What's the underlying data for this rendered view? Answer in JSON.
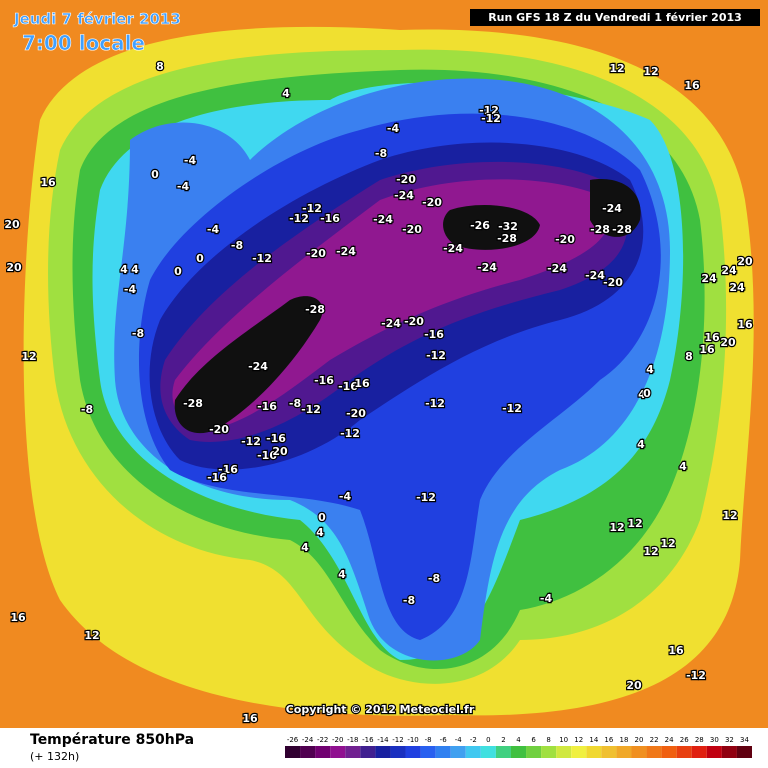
{
  "header": {
    "date": "Jeudi 7 février 2013",
    "time": "7:00 locale",
    "run": "Run GFS 18 Z du Vendredi 1 février 2013"
  },
  "copyright": "Copyright © 2012 Meteociel.fr",
  "footer": {
    "title": "Température 850hPa",
    "lead": "(+ 132h)"
  },
  "legend": {
    "ticks": [
      -26,
      -24,
      -22,
      -20,
      -18,
      -16,
      -14,
      -12,
      -10,
      -8,
      -6,
      -4,
      -2,
      0,
      2,
      4,
      6,
      8,
      10,
      12,
      14,
      16,
      18,
      20,
      22,
      24,
      26,
      28,
      30,
      32,
      34
    ],
    "colors": [
      "#300030",
      "#500050",
      "#700070",
      "#901090",
      "#702090",
      "#402090",
      "#1820a0",
      "#1a30c0",
      "#2040e0",
      "#2860f0",
      "#3080f0",
      "#40a0f0",
      "#40c8f0",
      "#40e0e0",
      "#40d080",
      "#40c040",
      "#70d040",
      "#a0e040",
      "#d0e840",
      "#f0f040",
      "#f0d830",
      "#f0c030",
      "#f0a828",
      "#f09020",
      "#f07818",
      "#f06010",
      "#e84010",
      "#e02010",
      "#c00010",
      "#900010",
      "#600010"
    ]
  },
  "contour_labels": [
    -4,
    -4,
    0,
    -4,
    -8,
    -12,
    -12,
    -12,
    -16,
    -20,
    -24,
    -20,
    -24,
    -20,
    -24,
    -20,
    -26,
    -32,
    -28,
    -24,
    -24,
    -20,
    -24,
    -24,
    -28,
    -28,
    -24,
    -20,
    -12,
    -12,
    -4,
    -8,
    4,
    8,
    16,
    20,
    20,
    12,
    12,
    16,
    -28,
    -24,
    -20,
    -16,
    -12,
    -24,
    -16,
    -16,
    16,
    -28,
    -16,
    -8,
    -12,
    -20,
    -12,
    -12,
    -12,
    -20,
    -12,
    -16,
    -16,
    20,
    -16,
    -16,
    -4,
    -12,
    0,
    4,
    4,
    4,
    -8,
    -8,
    -4,
    12,
    12,
    12,
    12,
    12,
    16,
    12,
    16,
    20,
    16,
    -12,
    16,
    16,
    20,
    16,
    24,
    24,
    20,
    24,
    8,
    4,
    4,
    0,
    4,
    4,
    -8,
    -8,
    12,
    -4,
    0,
    0,
    4,
    4
  ]
}
